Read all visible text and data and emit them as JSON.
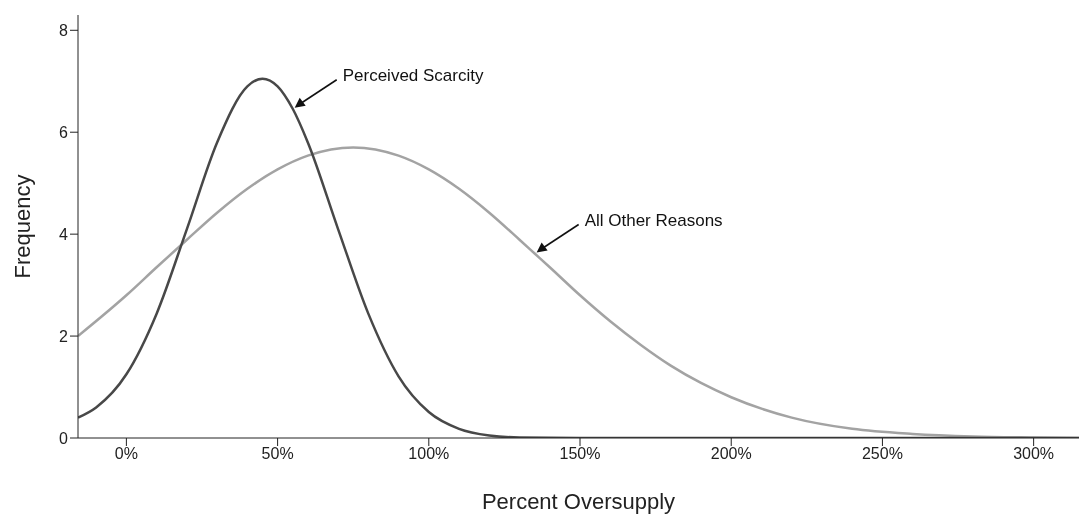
{
  "chart_data": {
    "type": "line",
    "xlabel": "Percent Oversupply",
    "ylabel": "Frequency",
    "xlim": [
      -16,
      315
    ],
    "ylim": [
      0,
      8.3
    ],
    "xticks": [
      {
        "value": 0,
        "label": "0%"
      },
      {
        "value": 50,
        "label": "50%"
      },
      {
        "value": 100,
        "label": "100%"
      },
      {
        "value": 150,
        "label": "150%"
      },
      {
        "value": 200,
        "label": "200%"
      },
      {
        "value": 250,
        "label": "250%"
      },
      {
        "value": 300,
        "label": "300%"
      }
    ],
    "yticks": [
      0,
      2,
      4,
      6,
      8
    ],
    "marker": "none",
    "line_style": "solid",
    "series": [
      {
        "color": "#a3a3a3",
        "x": [
          -16,
          0,
          10,
          20,
          30,
          40,
          50,
          60,
          75,
          90,
          100,
          110,
          120,
          130,
          135,
          140,
          150,
          160,
          170,
          180,
          190,
          200,
          220,
          240,
          260,
          280,
          300,
          315
        ],
        "values": [
          2.0,
          2.8,
          3.35,
          3.89,
          4.42,
          4.89,
          5.27,
          5.54,
          5.7,
          5.54,
          5.27,
          4.89,
          4.42,
          3.89,
          3.62,
          3.35,
          2.8,
          2.29,
          1.83,
          1.42,
          1.08,
          0.8,
          0.4,
          0.18,
          0.08,
          0.03,
          0.01,
          0
        ]
      },
      {
        "color": "#484848",
        "x": [
          -16,
          -10,
          0,
          10,
          20,
          30,
          40,
          45,
          50,
          55,
          60,
          70,
          80,
          90,
          100,
          110,
          120,
          130,
          150,
          200,
          250,
          315
        ],
        "values": [
          0.4,
          0.6,
          1.25,
          2.44,
          4.1,
          5.8,
          6.9,
          7.05,
          6.9,
          6.46,
          5.8,
          4.1,
          2.44,
          1.21,
          0.51,
          0.18,
          0.05,
          0.01,
          0,
          0,
          0,
          0
        ]
      }
    ],
    "annotations": [
      {
        "text": "Perceived Scarcity",
        "x": 55,
        "y": 6.46
      },
      {
        "text": "All Other Reasons",
        "x": 135,
        "y": 3.62
      }
    ]
  }
}
